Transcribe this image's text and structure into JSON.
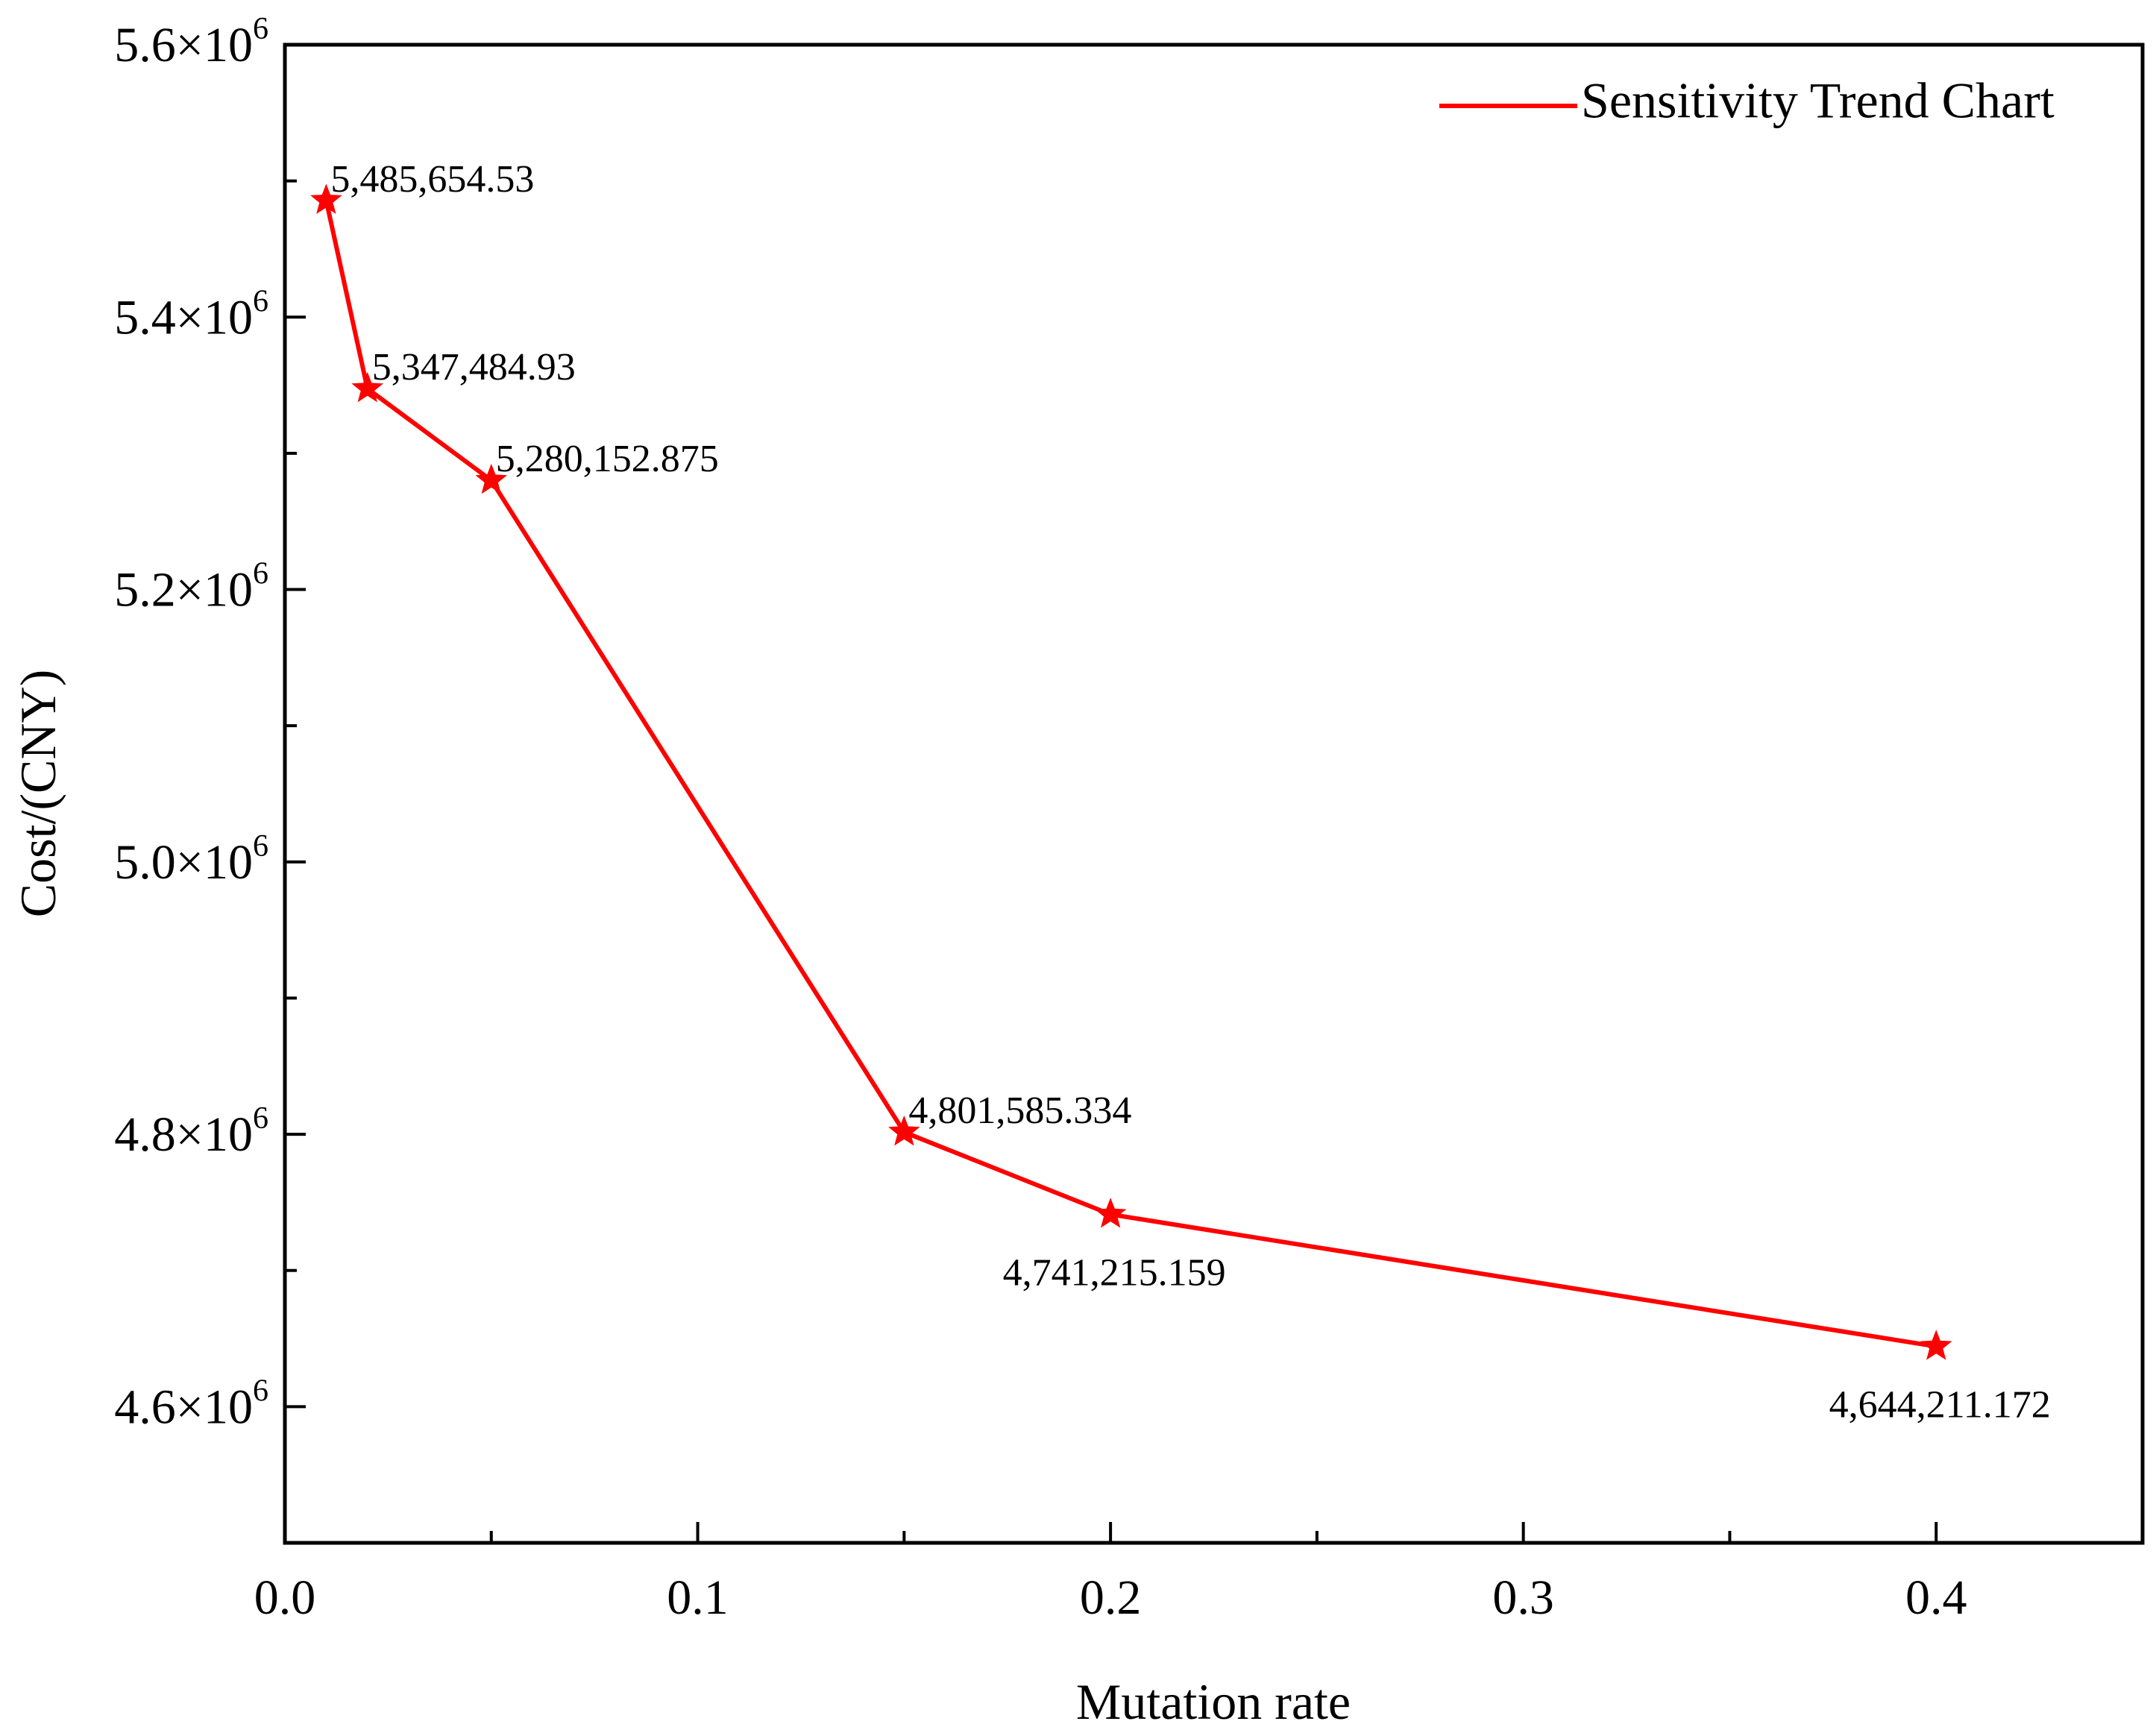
{
  "chart_data": {
    "type": "line",
    "title": "",
    "xlabel": "Mutation rate",
    "ylabel": "Cost/(CNY)",
    "xlim": [
      0,
      0.45
    ],
    "ylim": [
      4500000,
      5600000
    ],
    "x_ticks": [
      {
        "value": 0.0,
        "label": "0.0"
      },
      {
        "value": 0.1,
        "label": "0.1"
      },
      {
        "value": 0.2,
        "label": "0.2"
      },
      {
        "value": 0.3,
        "label": "0.3"
      },
      {
        "value": 0.4,
        "label": "0.4"
      }
    ],
    "x_minor_ticks": [
      0.05,
      0.15,
      0.25,
      0.35
    ],
    "y_ticks": [
      {
        "value": 4600000,
        "mantissa": "4.6×10",
        "exponent": "6"
      },
      {
        "value": 4800000,
        "mantissa": "4.8×10",
        "exponent": "6"
      },
      {
        "value": 5000000,
        "mantissa": "5.0×10",
        "exponent": "6"
      },
      {
        "value": 5200000,
        "mantissa": "5.2×10",
        "exponent": "6"
      },
      {
        "value": 5400000,
        "mantissa": "5.4×10",
        "exponent": "6"
      },
      {
        "value": 5600000,
        "mantissa": "5.6×10",
        "exponent": "6"
      }
    ],
    "y_minor_ticks": [
      4700000,
      4900000,
      5100000,
      5300000,
      5500000
    ],
    "grid": false,
    "legend_position": "top-right",
    "series": [
      {
        "name": "Sensitivity Trend Chart",
        "color": "#ff0000",
        "marker": "star",
        "x": [
          0.01,
          0.02,
          0.05,
          0.15,
          0.2,
          0.4
        ],
        "y": [
          5485654.53,
          5347484.93,
          5280152.875,
          4801585.334,
          4741215.159,
          4644211.172
        ],
        "labels": [
          "5,485,654.53",
          "5,347,484.93",
          "5,280,152.875",
          "4,801,585.334",
          "4,741,215.159",
          "4,644,211.172"
        ],
        "label_side": [
          "above-right",
          "above-right",
          "above-right",
          "above-right",
          "below",
          "below"
        ]
      }
    ]
  }
}
